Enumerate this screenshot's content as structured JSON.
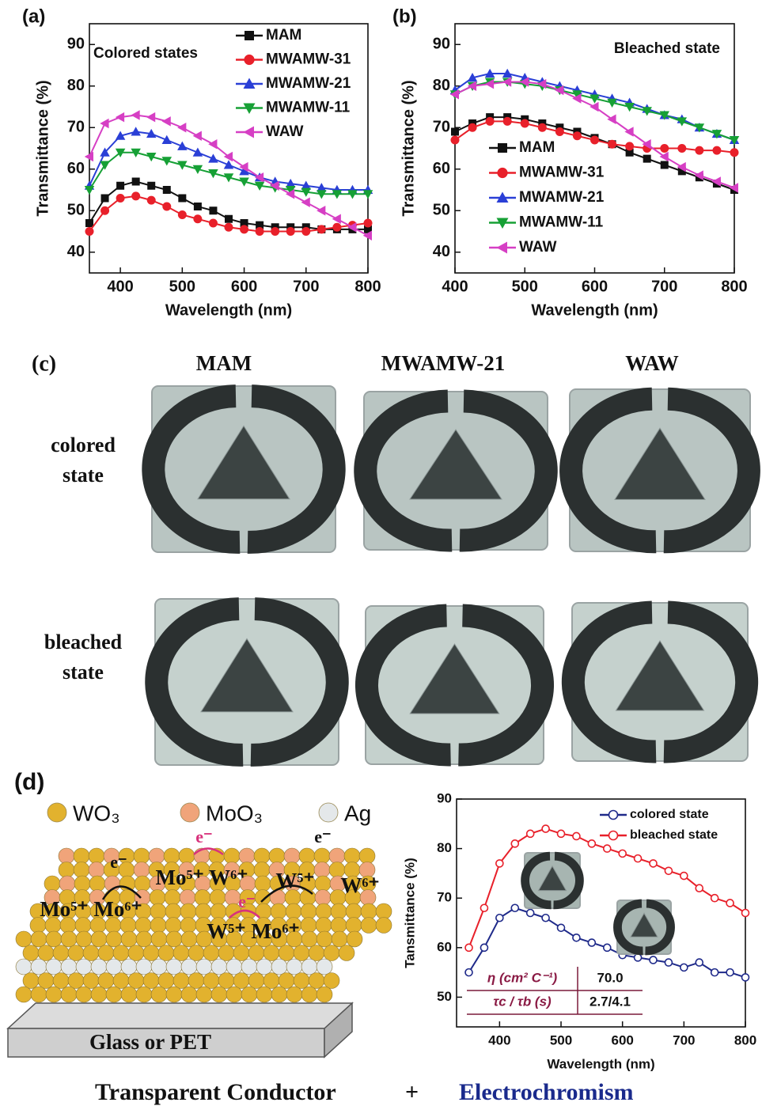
{
  "chart_data": [
    {
      "type": "line",
      "panel_label": "(a)",
      "annotation": "Colored states",
      "xlabel": "Wavelength (nm)",
      "ylabel": "Transmittance (%)",
      "xlim": [
        350,
        800
      ],
      "ylim": [
        35,
        95
      ],
      "xticks": [
        400,
        500,
        600,
        700,
        800
      ],
      "yticks": [
        40,
        50,
        60,
        70,
        80,
        90
      ],
      "legend": "upper right",
      "x": [
        350,
        375,
        400,
        425,
        450,
        475,
        500,
        525,
        550,
        575,
        600,
        625,
        650,
        675,
        700,
        725,
        750,
        775,
        800
      ],
      "series": [
        {
          "name": "MAM",
          "color": "#111111",
          "marker": "square",
          "values": [
            47,
            53,
            56,
            57,
            56,
            55,
            53,
            51,
            50,
            48,
            47,
            46.5,
            46,
            46,
            46,
            45.5,
            45.5,
            45.5,
            45.5
          ]
        },
        {
          "name": "MWAMW-31",
          "color": "#e8202a",
          "marker": "circle",
          "values": [
            45,
            50,
            53,
            53.5,
            52.5,
            51,
            49,
            48,
            47,
            46,
            45.5,
            45,
            45,
            45,
            45,
            45.5,
            46,
            46.5,
            47
          ]
        },
        {
          "name": "MWAMW-21",
          "color": "#2a3fd6",
          "marker": "triangle-up",
          "values": [
            56,
            64,
            68,
            69,
            68.5,
            67,
            65.5,
            64,
            62.5,
            61,
            59.5,
            58,
            57,
            56.5,
            56,
            55.5,
            55,
            55,
            55
          ]
        },
        {
          "name": "MWAMW-11",
          "color": "#16a035",
          "marker": "triangle-down",
          "values": [
            55,
            61,
            64,
            64,
            63,
            62,
            61,
            60,
            59,
            58,
            57,
            56,
            55.5,
            55,
            54.5,
            54,
            54,
            54,
            54
          ]
        },
        {
          "name": "WAW",
          "color": "#d63fc4",
          "marker": "triangle-left",
          "values": [
            63,
            71,
            72.5,
            73,
            72.5,
            71.5,
            70,
            68,
            66,
            63,
            60.5,
            58,
            56,
            54,
            52,
            50,
            48,
            46,
            44
          ]
        }
      ]
    },
    {
      "type": "line",
      "panel_label": "(b)",
      "annotation": "Bleached state",
      "xlabel": "Wavelength (nm)",
      "ylabel": "Transmittance (%)",
      "xlim": [
        400,
        800
      ],
      "ylim": [
        35,
        95
      ],
      "xticks": [
        400,
        500,
        600,
        700,
        800
      ],
      "yticks": [
        40,
        50,
        60,
        70,
        80,
        90
      ],
      "legend": "lower left",
      "x": [
        400,
        425,
        450,
        475,
        500,
        525,
        550,
        575,
        600,
        625,
        650,
        675,
        700,
        725,
        750,
        775,
        800
      ],
      "series": [
        {
          "name": "MAM",
          "color": "#111111",
          "marker": "square",
          "values": [
            69,
            71,
            72.5,
            72.5,
            72,
            71,
            70,
            69,
            67.5,
            66,
            64,
            62.5,
            61,
            59.5,
            58,
            56.5,
            55
          ]
        },
        {
          "name": "MWAMW-31",
          "color": "#e8202a",
          "marker": "circle",
          "values": [
            67,
            70,
            71.5,
            71.5,
            71,
            70,
            69,
            68,
            67,
            66,
            65.5,
            65,
            65,
            65,
            64.5,
            64.5,
            64
          ]
        },
        {
          "name": "MWAMW-21",
          "color": "#2a3fd6",
          "marker": "triangle-up",
          "values": [
            79,
            82,
            83,
            83,
            82,
            81,
            80,
            79,
            78,
            77,
            76,
            74.5,
            73,
            72,
            70,
            68.5,
            67
          ]
        },
        {
          "name": "MWAMW-11",
          "color": "#16a035",
          "marker": "triangle-down",
          "values": [
            78,
            80,
            81,
            81,
            80.5,
            80,
            79,
            78,
            77,
            76,
            75,
            74,
            73,
            71.5,
            70,
            68.5,
            67
          ]
        },
        {
          "name": "WAW",
          "color": "#d63fc4",
          "marker": "triangle-left",
          "values": [
            78,
            80,
            80.5,
            81,
            81,
            80.5,
            79,
            77,
            75,
            72,
            69,
            66,
            63,
            60.5,
            58.5,
            57,
            55.5
          ]
        }
      ]
    },
    {
      "type": "line",
      "xlabel": "Wavelength (nm)",
      "ylabel": "Tansmittance (%)",
      "xlim": [
        330,
        800
      ],
      "ylim": [
        44,
        90
      ],
      "xticks": [
        400,
        500,
        600,
        700,
        800
      ],
      "yticks": [
        50,
        60,
        70,
        80,
        90
      ],
      "legend": "upper right",
      "x": [
        350,
        375,
        400,
        425,
        450,
        475,
        500,
        525,
        550,
        575,
        600,
        625,
        650,
        675,
        700,
        725,
        750,
        775,
        800
      ],
      "series": [
        {
          "name": "colored state",
          "color": "#1f2a8a",
          "marker": "open-circle",
          "values": [
            55,
            60,
            66,
            68,
            67,
            66,
            64,
            62,
            61,
            60,
            58.5,
            58,
            57.5,
            57,
            56,
            57,
            55,
            55,
            54
          ]
        },
        {
          "name": "bleached state",
          "color": "#e8202a",
          "marker": "open-circle",
          "values": [
            60,
            68,
            77,
            81,
            83,
            84,
            83,
            82.5,
            81,
            80,
            79,
            78,
            77,
            75.5,
            74.5,
            72,
            70,
            69,
            67
          ]
        }
      ],
      "table": [
        [
          "η (cm² C⁻¹)",
          "70.0"
        ],
        [
          "τc / τb (s)",
          "2.7/4.1"
        ]
      ]
    }
  ],
  "panel_c": {
    "label": "(c)",
    "columns": [
      "MAM",
      "MWAMW-21",
      "WAW"
    ],
    "rows": [
      [
        "colored",
        "state"
      ],
      [
        "bleached",
        "state"
      ]
    ]
  },
  "panel_d": {
    "label": "(d)",
    "legend": [
      "WO₃",
      "MoO₃",
      "Ag"
    ],
    "labels": [
      "e⁻",
      "Mo⁵⁺ Mo⁶⁺",
      "e⁻",
      "Mo⁵⁺ W⁶⁺",
      "e⁻",
      "W⁵⁺ Mo⁶⁺",
      "e⁻",
      "W⁵⁺",
      "W⁶⁺"
    ],
    "substrate": "Glass or PET"
  },
  "footer": {
    "left": "Transparent Conductor",
    "plus": "+",
    "right": "Electrochromism"
  }
}
